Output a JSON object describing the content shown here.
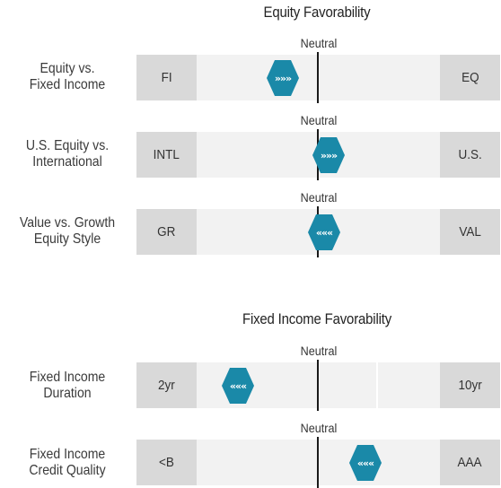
{
  "chart_data": [
    {
      "type": "bar",
      "title": "Equity Favorability",
      "neutral_label": "Neutral",
      "rows": [
        {
          "label_lines": [
            "Equity vs.",
            "Fixed Income"
          ],
          "left": "FI",
          "right": "EQ",
          "value": -0.29,
          "direction": "right"
        },
        {
          "label_lines": [
            "U.S. Equity vs.",
            "International"
          ],
          "left": "INTL",
          "right": "U.S.",
          "value": 0.09,
          "direction": "right"
        },
        {
          "label_lines": [
            "Value vs. Growth",
            "Equity Style"
          ],
          "left": "GR",
          "right": "VAL",
          "value": 0.05,
          "direction": "left"
        }
      ]
    },
    {
      "type": "bar",
      "title": "Fixed Income Favorability",
      "neutral_label": "Neutral",
      "rows": [
        {
          "label_lines": [
            "Fixed Income",
            "Duration"
          ],
          "left": "2yr",
          "right": "10yr",
          "value": -0.66,
          "direction": "left"
        },
        {
          "label_lines": [
            "Fixed Income",
            "Credit Quality"
          ],
          "left": "<B",
          "right": "AAA",
          "value": 0.39,
          "direction": "left"
        }
      ]
    }
  ],
  "colors": {
    "marker": "#1a89a8",
    "end_box": "#d9d9d9",
    "track": "#f2f2f2",
    "center_line": "#1a1a1a"
  },
  "icons": {
    "right": "triple-chevron-right-icon",
    "left": "triple-chevron-left-icon"
  }
}
